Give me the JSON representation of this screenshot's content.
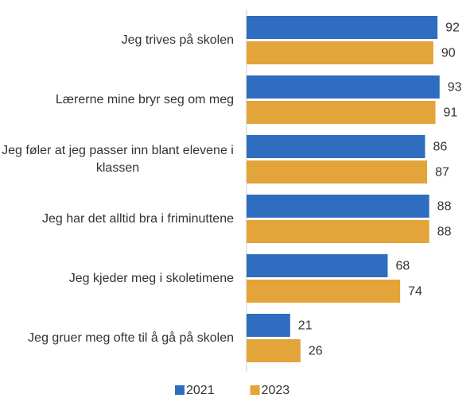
{
  "chart_data": {
    "type": "bar",
    "orientation": "horizontal",
    "categories": [
      "Jeg trives på skolen",
      "Lærerne mine bryr seg om meg",
      "Jeg føler at jeg passer inn blant elevene i klassen",
      "Jeg har det alltid bra i friminuttene",
      "Jeg kjeder meg i skoletimene",
      "Jeg gruer meg ofte til å gå på skolen"
    ],
    "series": [
      {
        "name": "2021",
        "color": "#2e6dbf",
        "values": [
          92,
          93,
          86,
          88,
          68,
          21
        ]
      },
      {
        "name": "2023",
        "color": "#e3a43a",
        "values": [
          90,
          91,
          87,
          88,
          74,
          26
        ]
      }
    ],
    "xlim": [
      0,
      100
    ],
    "legend": "bottom"
  }
}
